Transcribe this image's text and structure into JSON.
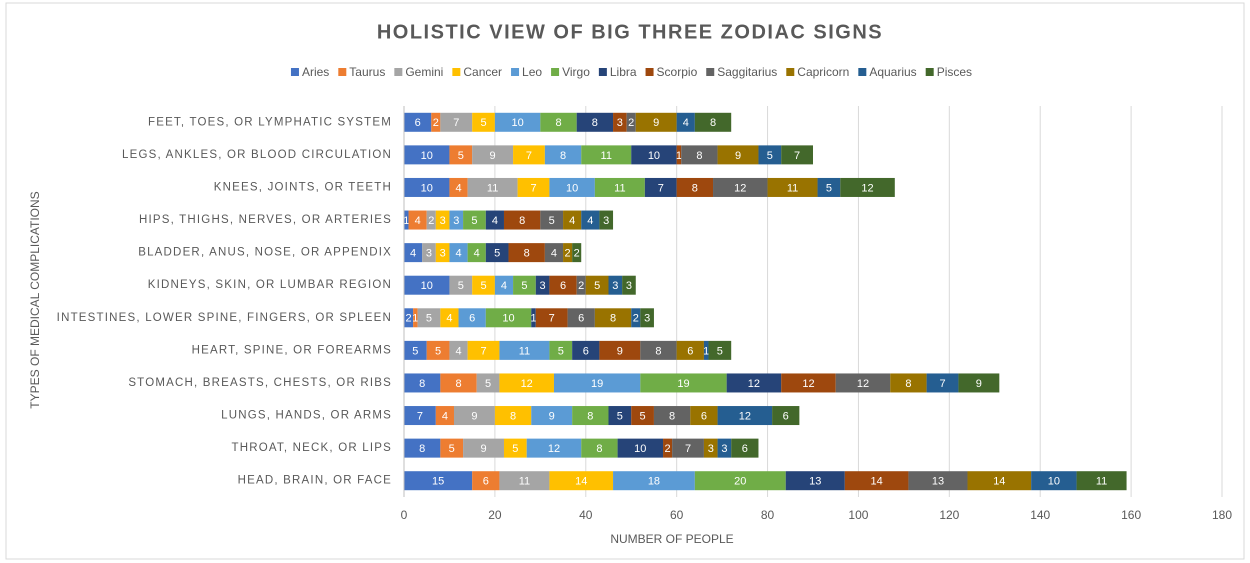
{
  "chart_data": {
    "type": "stacked-bar-horizontal",
    "title": "HOLISTIC VIEW OF BIG THREE ZODIAC SIGNS",
    "x_label": "NUMBER OF PEOPLE",
    "y_label": "TYPES OF MEDICAL COMPLICATIONS",
    "categories": [
      "FEET, TOES, OR LYMPHATIC SYSTEM",
      "LEGS, ANKLES, OR BLOOD CIRCULATION",
      "KNEES, JOINTS, OR TEETH",
      "HIPS, THIGHS, NERVES, OR ARTERIES",
      "BLADDER, ANUS, NOSE, OR APPENDIX",
      "KIDNEYS, SKIN, OR LUMBAR REGION",
      "INTESTINES, LOWER SPINE, FINGERS, OR SPLEEN",
      "HEART, SPINE, OR FOREARMS",
      "STOMACH, BREASTS, CHESTS, OR RIBS",
      "LUNGS, HANDS, OR ARMS",
      "THROAT, NECK, OR LIPS",
      "HEAD, BRAIN, OR FACE"
    ],
    "series": [
      {
        "name": "Aries",
        "color": "#4472c4",
        "values": [
          6,
          10,
          10,
          1,
          4,
          10,
          2,
          5,
          8,
          7,
          8,
          15
        ]
      },
      {
        "name": "Taurus",
        "color": "#ed7d31",
        "values": [
          2,
          5,
          4,
          4,
          null,
          null,
          1,
          5,
          8,
          4,
          5,
          6
        ]
      },
      {
        "name": "Gemini",
        "color": "#a5a5a5",
        "values": [
          7,
          9,
          11,
          2,
          3,
          5,
          5,
          4,
          5,
          9,
          9,
          11
        ]
      },
      {
        "name": "Cancer",
        "color": "#ffc000",
        "values": [
          5,
          7,
          7,
          3,
          3,
          5,
          4,
          7,
          12,
          8,
          5,
          14
        ]
      },
      {
        "name": "Leo",
        "color": "#5b9bd5",
        "values": [
          10,
          8,
          10,
          3,
          4,
          4,
          6,
          11,
          19,
          9,
          12,
          18
        ]
      },
      {
        "name": "Virgo",
        "color": "#70ad47",
        "values": [
          8,
          11,
          11,
          5,
          4,
          5,
          10,
          5,
          19,
          8,
          8,
          20
        ]
      },
      {
        "name": "Libra",
        "color": "#264478",
        "values": [
          8,
          10,
          7,
          4,
          5,
          3,
          1,
          6,
          12,
          5,
          10,
          13
        ]
      },
      {
        "name": "Scorpio",
        "color": "#9e480e",
        "values": [
          3,
          1,
          8,
          8,
          8,
          6,
          7,
          9,
          12,
          5,
          2,
          14
        ]
      },
      {
        "name": "Saggitarius",
        "color": "#636363",
        "values": [
          2,
          8,
          12,
          5,
          4,
          2,
          6,
          8,
          12,
          8,
          7,
          13
        ]
      },
      {
        "name": "Capricorn",
        "color": "#997300",
        "values": [
          9,
          9,
          11,
          4,
          2,
          5,
          8,
          6,
          8,
          6,
          3,
          14
        ]
      },
      {
        "name": "Aquarius",
        "color": "#255e91",
        "values": [
          4,
          5,
          5,
          4,
          null,
          3,
          2,
          1,
          7,
          12,
          3,
          10
        ]
      },
      {
        "name": "Pisces",
        "color": "#43682b",
        "values": [
          8,
          7,
          12,
          3,
          2,
          3,
          3,
          5,
          9,
          6,
          6,
          11
        ]
      }
    ],
    "xlim": [
      0,
      180
    ],
    "xticks": [
      0,
      20,
      40,
      60,
      80,
      100,
      120,
      140,
      160,
      180
    ],
    "grid": true
  }
}
